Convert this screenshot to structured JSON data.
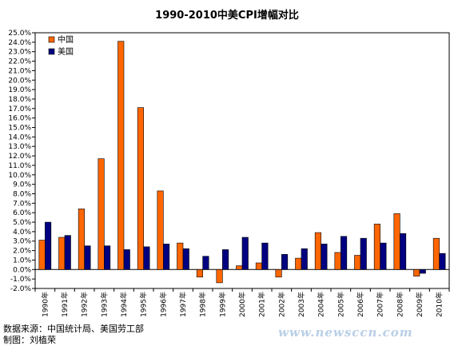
{
  "chart_data": {
    "type": "bar",
    "title": "1990-2010中美CPI增幅对比",
    "categories": [
      "1990年",
      "1991年",
      "1992年",
      "1993年",
      "1994年",
      "1995年",
      "1996年",
      "1997年",
      "1998年",
      "1999年",
      "2000年",
      "2001年",
      "2002年",
      "2003年",
      "2004年",
      "2005年",
      "2006年",
      "2007年",
      "2008年",
      "2009年",
      "2010年"
    ],
    "series": [
      {
        "name": "中国",
        "color": "#ff6600",
        "values": [
          3.1,
          3.4,
          6.4,
          11.7,
          24.1,
          17.1,
          8.3,
          2.8,
          -0.8,
          -1.4,
          0.4,
          0.7,
          -0.8,
          1.2,
          3.9,
          1.8,
          1.5,
          4.8,
          5.9,
          -0.7,
          3.3
        ]
      },
      {
        "name": "美国",
        "color": "#000080",
        "values": [
          5.0,
          3.6,
          2.5,
          2.5,
          2.1,
          2.4,
          2.7,
          2.2,
          1.4,
          2.1,
          3.4,
          2.8,
          1.6,
          2.2,
          2.7,
          3.5,
          3.3,
          2.8,
          3.8,
          -0.4,
          1.7
        ]
      }
    ],
    "ylim": [
      -2.0,
      25.0
    ],
    "ytick_step": 1.0,
    "ytick_labels": [
      "-2.0%",
      "-1.0%",
      "0.0%",
      "1.0%",
      "2.0%",
      "3.0%",
      "4.0%",
      "5.0%",
      "6.0%",
      "7.0%",
      "8.0%",
      "9.0%",
      "10.0%",
      "11.0%",
      "12.0%",
      "13.0%",
      "14.0%",
      "15.0%",
      "16.0%",
      "17.0%",
      "18.0%",
      "19.0%",
      "20.0%",
      "21.0%",
      "22.0%",
      "23.0%",
      "24.0%",
      "25.0%"
    ],
    "xlabel": "",
    "ylabel": "",
    "grid": false,
    "legend_position": "top-left"
  },
  "footer": {
    "source": "数据来源：中国统计局、美国劳工部",
    "author": "制图：刘植荣"
  },
  "watermark": "www.newsccn.com"
}
